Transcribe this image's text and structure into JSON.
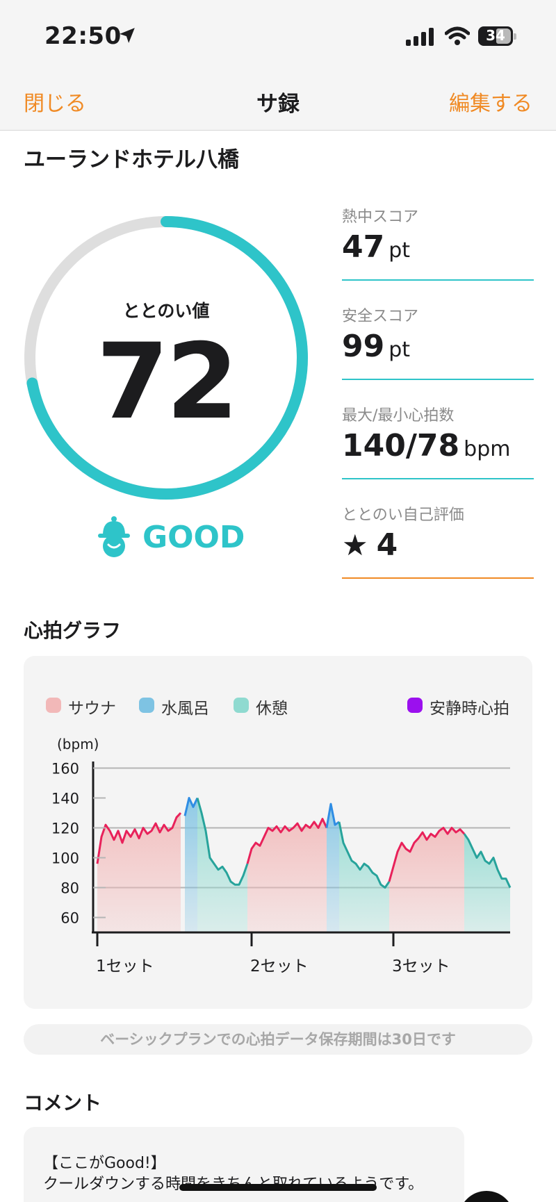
{
  "status_bar": {
    "time": "22:50",
    "battery": "34",
    "icons": [
      "location-arrow-icon",
      "signal-icon",
      "wifi-icon",
      "battery-icon"
    ]
  },
  "nav": {
    "close_label": "閉じる",
    "title": "サ録",
    "edit_label": "編集する"
  },
  "facility_name": "ユーランドホテル八橋",
  "totonoi": {
    "label": "ととのい値",
    "value": 72,
    "max": 100,
    "rating_label": "GOOD",
    "icon": "sauna-hat-face-icon"
  },
  "stats": [
    {
      "label": "熱中スコア",
      "value": "47",
      "unit": "pt"
    },
    {
      "label": "安全スコア",
      "value": "99",
      "unit": "pt"
    },
    {
      "label": "最大/最小心拍数",
      "value": "140/78",
      "unit": "bpm"
    },
    {
      "label": "ととのい自己評価",
      "value": "4",
      "icon": "star-icon"
    }
  ],
  "heart_graph": {
    "title": "心拍グラフ",
    "legend": [
      {
        "label": "サウナ",
        "color": "#f2b8b8"
      },
      {
        "label": "水風呂",
        "color": "#7ec3e3"
      },
      {
        "label": "休憩",
        "color": "#8fdad0"
      },
      {
        "label": "安静時心拍",
        "color": "#9b10ee"
      }
    ]
  },
  "chart_data": {
    "type": "line",
    "ylabel": "(bpm)",
    "yticks": [
      60,
      80,
      100,
      120,
      140,
      160
    ],
    "ylim": [
      50,
      170
    ],
    "xlim": [
      0,
      100
    ],
    "xticks": [
      {
        "x": 1,
        "label": "1セット"
      },
      {
        "x": 38,
        "label": "2セット"
      },
      {
        "x": 72,
        "label": "3セット"
      }
    ],
    "gridlines": [
      80,
      120,
      160
    ],
    "phases": [
      {
        "type": "sauna",
        "start": 1,
        "end": 21
      },
      {
        "type": "cold",
        "start": 22,
        "end": 25
      },
      {
        "type": "rest",
        "start": 25,
        "end": 37
      },
      {
        "type": "sauna",
        "start": 37,
        "end": 56
      },
      {
        "type": "cold",
        "start": 56,
        "end": 59
      },
      {
        "type": "rest",
        "start": 59,
        "end": 71
      },
      {
        "type": "sauna",
        "start": 71,
        "end": 89
      },
      {
        "type": "rest",
        "start": 89,
        "end": 100
      }
    ],
    "series": [
      {
        "points": [
          [
            1,
            96
          ],
          [
            2,
            114
          ],
          [
            3,
            122
          ],
          [
            4,
            118
          ],
          [
            5,
            112
          ],
          [
            6,
            118
          ],
          [
            7,
            110
          ],
          [
            8,
            118
          ],
          [
            9,
            114
          ],
          [
            10,
            119
          ],
          [
            11,
            113
          ],
          [
            12,
            120
          ],
          [
            13,
            116
          ],
          [
            14,
            118
          ],
          [
            15,
            123
          ],
          [
            16,
            117
          ],
          [
            17,
            122
          ],
          [
            18,
            118
          ],
          [
            19,
            120
          ],
          [
            20,
            127
          ],
          [
            21,
            130
          ],
          [
            22,
            128
          ],
          [
            23,
            140
          ],
          [
            24,
            134
          ],
          [
            25,
            140
          ],
          [
            26,
            130
          ],
          [
            27,
            118
          ],
          [
            28,
            100
          ],
          [
            29,
            96
          ],
          [
            30,
            92
          ],
          [
            31,
            94
          ],
          [
            32,
            90
          ],
          [
            33,
            84
          ],
          [
            34,
            82
          ],
          [
            35,
            82
          ],
          [
            36,
            88
          ],
          [
            37,
            96
          ],
          [
            38,
            106
          ],
          [
            39,
            110
          ],
          [
            40,
            108
          ],
          [
            41,
            114
          ],
          [
            42,
            120
          ],
          [
            43,
            118
          ],
          [
            44,
            121
          ],
          [
            45,
            117
          ],
          [
            46,
            121
          ],
          [
            47,
            118
          ],
          [
            48,
            120
          ],
          [
            49,
            123
          ],
          [
            50,
            118
          ],
          [
            51,
            122
          ],
          [
            52,
            120
          ],
          [
            53,
            124
          ],
          [
            54,
            120
          ],
          [
            55,
            126
          ],
          [
            56,
            120
          ],
          [
            57,
            136
          ],
          [
            58,
            122
          ],
          [
            59,
            124
          ],
          [
            60,
            110
          ],
          [
            61,
            104
          ],
          [
            62,
            98
          ],
          [
            63,
            96
          ],
          [
            64,
            92
          ],
          [
            65,
            96
          ],
          [
            66,
            94
          ],
          [
            67,
            90
          ],
          [
            68,
            88
          ],
          [
            69,
            82
          ],
          [
            70,
            80
          ],
          [
            71,
            84
          ],
          [
            72,
            94
          ],
          [
            73,
            104
          ],
          [
            74,
            110
          ],
          [
            75,
            106
          ],
          [
            76,
            104
          ],
          [
            77,
            110
          ],
          [
            78,
            113
          ],
          [
            79,
            117
          ],
          [
            80,
            112
          ],
          [
            81,
            116
          ],
          [
            82,
            114
          ],
          [
            83,
            118
          ],
          [
            84,
            120
          ],
          [
            85,
            116
          ],
          [
            86,
            120
          ],
          [
            87,
            117
          ],
          [
            88,
            119
          ],
          [
            89,
            116
          ],
          [
            90,
            112
          ],
          [
            91,
            106
          ],
          [
            92,
            100
          ],
          [
            93,
            104
          ],
          [
            94,
            98
          ],
          [
            95,
            96
          ],
          [
            96,
            100
          ],
          [
            97,
            92
          ],
          [
            98,
            86
          ],
          [
            99,
            86
          ],
          [
            100,
            80
          ]
        ]
      }
    ]
  },
  "notice_text": "ベーシックプランでの心拍データ保存期間は30日です",
  "comment": {
    "title": "コメント",
    "lines": [
      "【ここがGood!】",
      "クールダウンする時間をきちんと取れているようです。"
    ]
  }
}
